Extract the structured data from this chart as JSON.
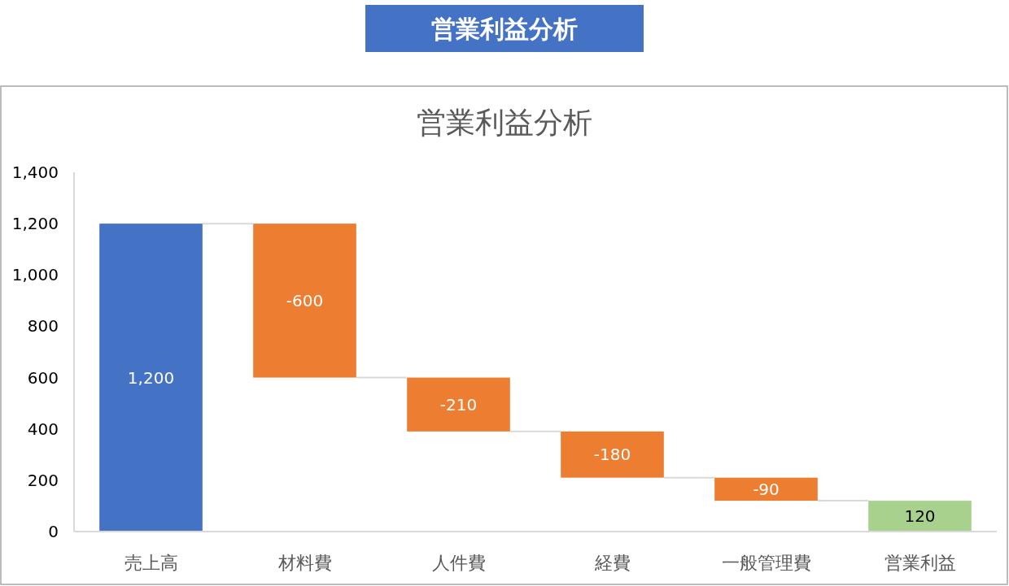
{
  "chart_data": {
    "type": "bar",
    "title": "営業利益分析",
    "subtitle": "営業利益分析",
    "categories": [
      "売上高",
      "材料費",
      "人件費",
      "経費",
      "一般管理費",
      "営業利益"
    ],
    "values": [
      1200,
      -600,
      -210,
      -180,
      -90,
      120
    ],
    "base": [
      0,
      1200,
      600,
      390,
      210,
      0
    ],
    "colors": [
      "#4472c4",
      "#ed7d31",
      "#ed7d31",
      "#ed7d31",
      "#ed7d31",
      "#a9d18e"
    ],
    "value_labels": [
      "1,200",
      "-600",
      "-210",
      "-180",
      "-90",
      "120"
    ],
    "ylim": [
      0,
      1400
    ],
    "yticks": [
      0,
      200,
      400,
      600,
      800,
      {
        "value": 1000,
        "label": "1,000"
      },
      {
        "value": 1200,
        "label": "1,200"
      },
      {
        "value": 1400,
        "label": "1,400"
      }
    ]
  }
}
